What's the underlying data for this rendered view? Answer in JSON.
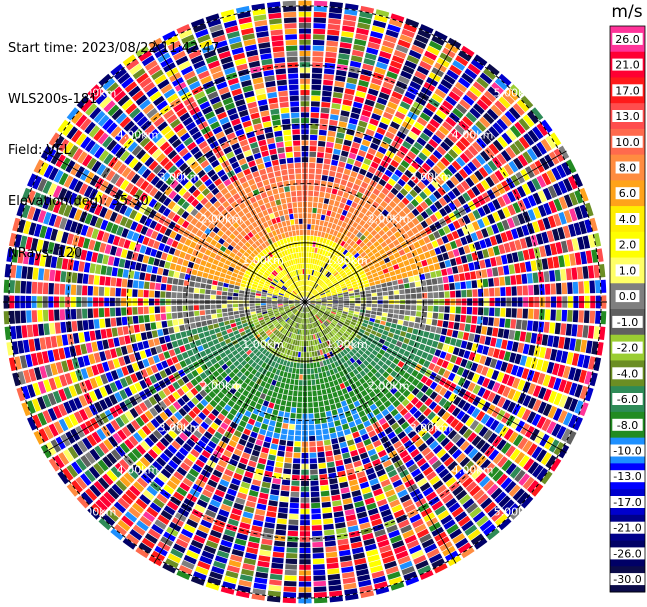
{
  "header": {
    "start_time": "Start time: 2023/08/22 11:42:47",
    "instrument": "WLS200s-181",
    "field": "Field: VEL",
    "elevation": "Elevation(deg): 35.30",
    "nrays": "NRays: 120"
  },
  "colorbar": {
    "unit": "m/s",
    "ticks": [
      "26.0",
      "21.0",
      "17.0",
      "13.0",
      "10.0",
      "8.0",
      "6.0",
      "4.0",
      "2.0",
      "1.0",
      "0.0",
      "-1.0",
      "-2.0",
      "-4.0",
      "-6.0",
      "-8.0",
      "-10.0",
      "-13.0",
      "-17.0",
      "-21.0",
      "-26.0",
      "-30.0"
    ],
    "colors": [
      "#ff3399",
      "#ff0033",
      "#ff1a1a",
      "#ff4d4d",
      "#ff6a4d",
      "#ff8c40",
      "#ffa31a",
      "#ffee00",
      "#ffff00",
      "#ffff66",
      "#7f7f7f",
      "#606060",
      "#9acd32",
      "#6b8e23",
      "#2e8b57",
      "#228b22",
      "#1e90ff",
      "#0000ff",
      "#0000cd",
      "#00008b",
      "#000066",
      "#0b0b4a"
    ]
  },
  "ring_labels": [
    "1.00km",
    "1.00km",
    "1.00km",
    "1.00km",
    "2.00km",
    "2.00km",
    "2.00km",
    "2.00km",
    "3.00km",
    "3.00km",
    "3.00km",
    "3.00km",
    "4.00km",
    "4.00km",
    "4.00km",
    "4.00km",
    "5.00km",
    "5.00km",
    "5.00km",
    "5.00km"
  ],
  "chart_data": {
    "type": "heatmap",
    "subtype": "ppi-polar",
    "field": "VEL",
    "unit": "m/s",
    "n_rays": 120,
    "elevation_deg": 35.3,
    "range_rings_km": [
      1,
      2,
      3,
      4,
      5
    ],
    "colorbar_ticks": [
      26.0,
      21.0,
      17.0,
      13.0,
      10.0,
      8.0,
      6.0,
      4.0,
      2.0,
      1.0,
      0.0,
      -1.0,
      -2.0,
      -4.0,
      -6.0,
      -8.0,
      -10.0,
      -13.0,
      -17.0,
      -21.0,
      -26.0,
      -30.0
    ],
    "vmin": -30.0,
    "vmax": 26.0
  }
}
